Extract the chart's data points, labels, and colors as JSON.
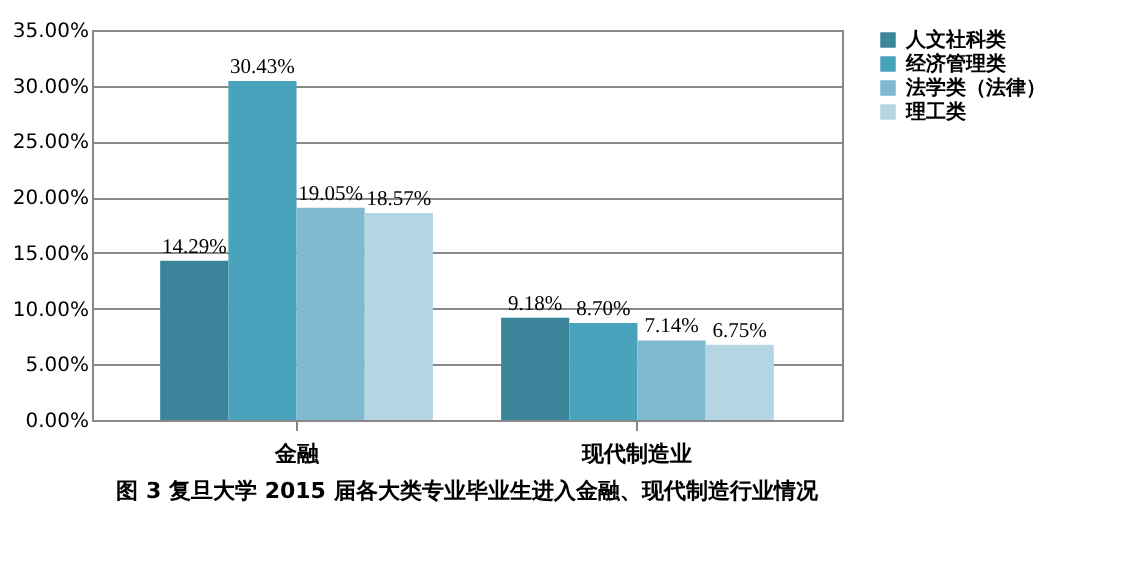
{
  "chart_data": {
    "type": "bar",
    "title": "图 3  复旦大学 2015 届各大类专业毕业生进入金融、现代制造行业情况",
    "categories": [
      "金融",
      "现代制造业"
    ],
    "series": [
      {
        "name": "人文社科类",
        "color": "#3b8499",
        "values": [
          14.29,
          9.18
        ],
        "value_labels": [
          "14.29%",
          "9.18%"
        ]
      },
      {
        "name": "经济管理类",
        "color": "#4aa3bc",
        "values": [
          30.43,
          8.7
        ],
        "value_labels": [
          "30.43%",
          "8.70%"
        ]
      },
      {
        "name": "法学类（法律）",
        "color": "#7fbad0",
        "values": [
          19.05,
          7.14
        ],
        "value_labels": [
          "19.05%",
          "7.14%"
        ]
      },
      {
        "name": "理工类",
        "color": "#b4d6e2",
        "values": [
          18.57,
          6.75
        ],
        "value_labels": [
          "18.57%",
          "6.75%"
        ]
      }
    ],
    "ylim": [
      0,
      35
    ],
    "yticks": [
      {
        "value": 0,
        "label": "0.00%"
      },
      {
        "value": 5,
        "label": "5.00%"
      },
      {
        "value": 10,
        "label": "10.00%"
      },
      {
        "value": 15,
        "label": "15.00%"
      },
      {
        "value": 20,
        "label": "20.00%"
      },
      {
        "value": 25,
        "label": "25.00%"
      },
      {
        "value": 30,
        "label": "30.00%"
      },
      {
        "value": 35,
        "label": "35.00%"
      }
    ],
    "grid": "y",
    "legend": "right"
  }
}
